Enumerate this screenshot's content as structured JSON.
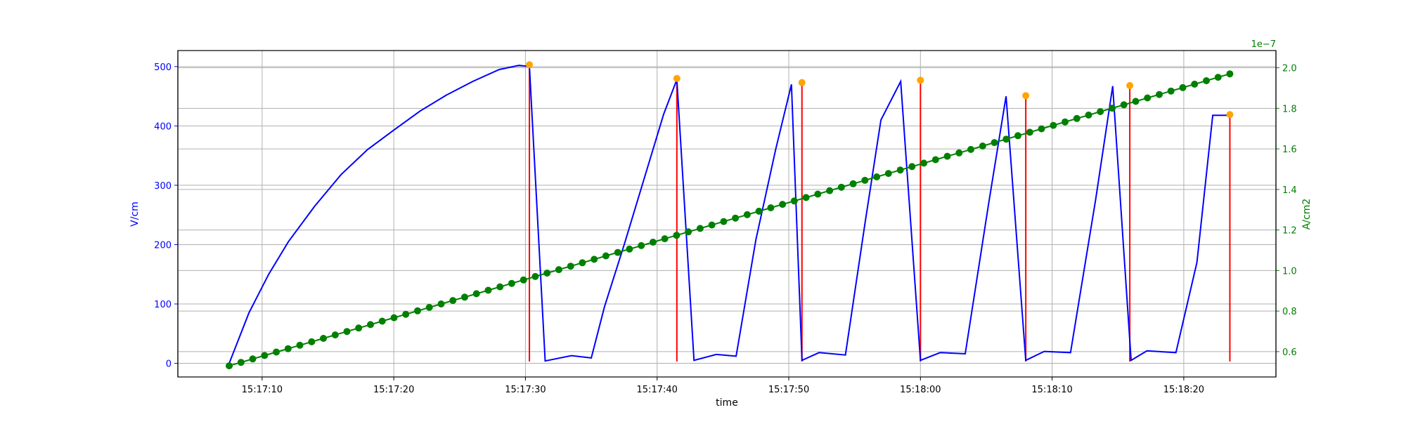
{
  "chart_data": {
    "type": "line",
    "xlabel": "time",
    "ylabel_left": "V/cm",
    "ylabel_right": "A/cm2",
    "right_axis_offset_label": "1e−7",
    "x_ticks": [
      "15:17:10",
      "15:17:20",
      "15:17:30",
      "15:17:40",
      "15:17:50",
      "15:18:00",
      "15:18:10",
      "15:18:20"
    ],
    "y_left_ticks": [
      0,
      100,
      200,
      300,
      400,
      500
    ],
    "y_right_ticks": [
      "0.6",
      "0.8",
      "1.0",
      "1.2",
      "1.4",
      "1.6",
      "1.8",
      "2.0"
    ],
    "xlim_seconds": [
      3.6,
      87.0
    ],
    "ylim_left": [
      -23,
      527
    ],
    "ylim_right": [
      0.475,
      2.085
    ],
    "grid": true,
    "colors": {
      "field": "#0000ff",
      "current": "#008000",
      "peaks": "#ffa500",
      "markers": "#ff0000",
      "left_axis": "#0000ff",
      "right_axis": "#008000"
    },
    "series": [
      {
        "axis": "left",
        "x": [
          7.5,
          9.0,
          10.5,
          12.0,
          14.0,
          16.0,
          18.0,
          20.0,
          22.0,
          24.0,
          26.0,
          28.0,
          29.5,
          30.3,
          31.5,
          33.5,
          35.0,
          36.0,
          37.5,
          39.0,
          40.5,
          41.5,
          42.8,
          44.5,
          46.0,
          47.5,
          49.0,
          50.2,
          51.0,
          52.3,
          54.3,
          55.8,
          57.0,
          58.5,
          60.0,
          61.5,
          63.4,
          65.2,
          66.5,
          68.0,
          69.4,
          71.4,
          73.3,
          74.6,
          76.0,
          77.2,
          79.4,
          81.0,
          82.2,
          83.5
        ],
        "values": [
          0,
          85,
          150,
          205,
          265,
          318,
          360,
          393,
          425,
          452,
          475,
          495,
          502,
          500,
          4,
          13,
          9,
          95,
          200,
          310,
          420,
          478,
          5,
          15,
          12,
          208,
          360,
          470,
          5,
          18,
          14,
          238,
          410,
          475,
          5,
          18,
          16,
          272,
          450,
          5,
          20,
          18,
          275,
          467,
          5,
          21,
          18,
          170,
          418,
          418
        ]
      },
      {
        "axis": "right",
        "start": 7.5,
        "end": 83.5,
        "start_value": 0.53,
        "end_value": 1.97,
        "points": 86
      }
    ],
    "peaks": {
      "x": [
        30.3,
        41.5,
        51.0,
        60.0,
        68.0,
        75.9,
        83.5
      ],
      "values": [
        503,
        480,
        473,
        477,
        451,
        468,
        419
      ]
    },
    "markers": {
      "x": [
        30.3,
        41.5,
        51.0,
        60.0,
        68.0,
        75.9,
        83.5
      ],
      "bottom": 3
    }
  }
}
